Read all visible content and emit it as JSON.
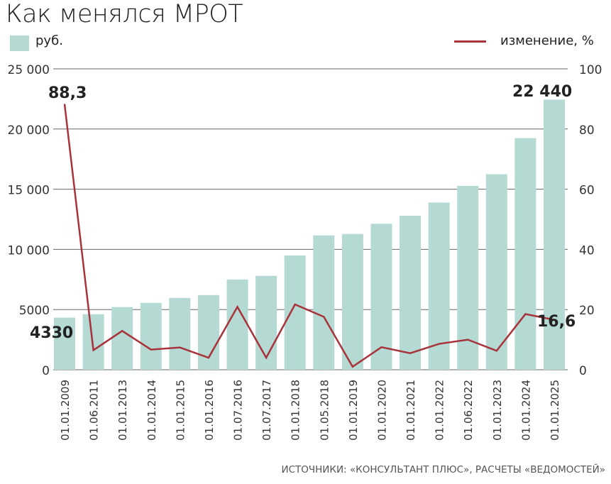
{
  "chart_data": {
    "type": "bar",
    "title": "Как менялся МРОТ",
    "categories": [
      "01.01.2009",
      "01.06.2011",
      "01.01.2013",
      "01.01.2014",
      "01.01.2015",
      "01.01.2016",
      "01.07.2016",
      "01.07.2017",
      "01.01.2018",
      "01.05.2018",
      "01.01.2019",
      "01.01.2020",
      "01.01.2021",
      "01.01.2022",
      "01.06.2022",
      "01.01.2023",
      "01.01.2024",
      "01.01.2025"
    ],
    "series": [
      {
        "name": "руб.",
        "type": "bar",
        "axis": "left",
        "color": "#b5d9d3",
        "values": [
          4330,
          4611,
          5205,
          5554,
          5965,
          6204,
          7500,
          7800,
          9489,
          11163,
          11280,
          12130,
          12792,
          13890,
          15279,
          16242,
          19242,
          22440
        ]
      },
      {
        "name": "изменение, %",
        "type": "line",
        "axis": "right",
        "color": "#a8333b",
        "values": [
          88.3,
          6.5,
          12.9,
          6.7,
          7.4,
          4.0,
          20.9,
          4.0,
          21.7,
          17.6,
          1.0,
          7.5,
          5.5,
          8.6,
          10.0,
          6.3,
          18.5,
          16.6
        ]
      }
    ],
    "ylim_left": [
      0,
      25000
    ],
    "yticks_left": [
      "0",
      "5000",
      "10 000",
      "15 000",
      "20 000",
      "25 000"
    ],
    "ylim_right": [
      0,
      100
    ],
    "yticks_right": [
      "0",
      "20",
      "40",
      "60",
      "80",
      "100"
    ],
    "annotations": [
      "88,3",
      "4330",
      "22 440",
      "16,6"
    ],
    "legend": "top",
    "grid": true,
    "source": "ИСТОЧНИКИ: «КОНСУЛЬТАНТ ПЛЮС», РАСЧЕТЫ «ВЕДОМОСТЕЙ»"
  }
}
